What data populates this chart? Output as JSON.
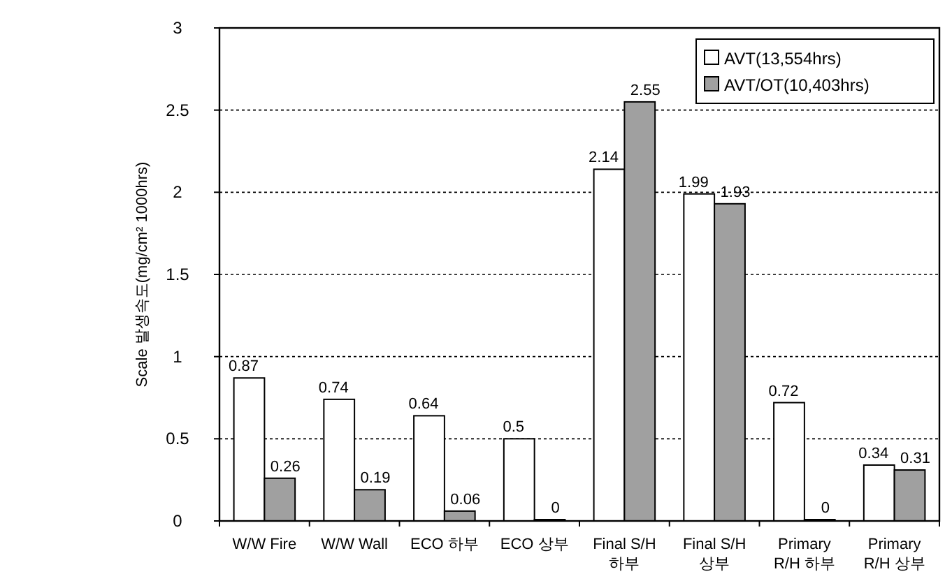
{
  "chart_data": {
    "type": "bar",
    "ylabel": "Scale 발생속도(mg/cm² 1000hrs)",
    "categories": [
      "W/W Fire",
      "W/W Wall",
      "ECO 하부",
      "ECO 상부",
      "Final S/H\n하부",
      "Final S/H\n상부",
      "Primary\nR/H 하부",
      "Primary\nR/H 상부"
    ],
    "series": [
      {
        "name": "AVT(13,554hrs)",
        "color": "#ffffff",
        "values": [
          0.87,
          0.74,
          0.64,
          0.5,
          2.14,
          1.99,
          0.72,
          0.34
        ]
      },
      {
        "name": "AVT/OT(10,403hrs)",
        "color": "#a0a0a0",
        "values": [
          0.26,
          0.19,
          0.06,
          0,
          2.55,
          1.93,
          0,
          0.31
        ]
      }
    ],
    "ylim": [
      0,
      3
    ],
    "yticks": [
      0,
      0.5,
      1,
      1.5,
      2,
      2.5,
      3
    ],
    "grid": "y",
    "legend": "top right",
    "data_labels": true
  }
}
